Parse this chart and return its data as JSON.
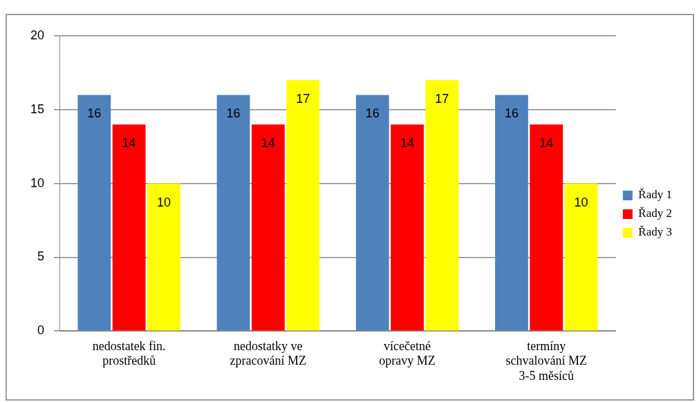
{
  "chart_data": {
    "type": "bar",
    "categories": [
      "nedostatek fin. prostředků",
      "nedostatky ve zpracování MZ",
      "vícečetné opravy MZ",
      "termíny schvalování MZ 3-5 měsíců"
    ],
    "series": [
      {
        "name": "Řady 1",
        "color": "#4f81bd",
        "values": [
          16,
          16,
          16,
          16
        ]
      },
      {
        "name": "Řady 2",
        "color": "#ff0000",
        "values": [
          14,
          14,
          14,
          14
        ]
      },
      {
        "name": "Řady 3",
        "color": "#ffff00",
        "values": [
          10,
          17,
          17,
          10
        ]
      }
    ],
    "ylim": [
      0,
      20
    ],
    "yticks": [
      0,
      5,
      10,
      15,
      20
    ],
    "grid": "y",
    "legend": "right",
    "data_labels": true
  }
}
